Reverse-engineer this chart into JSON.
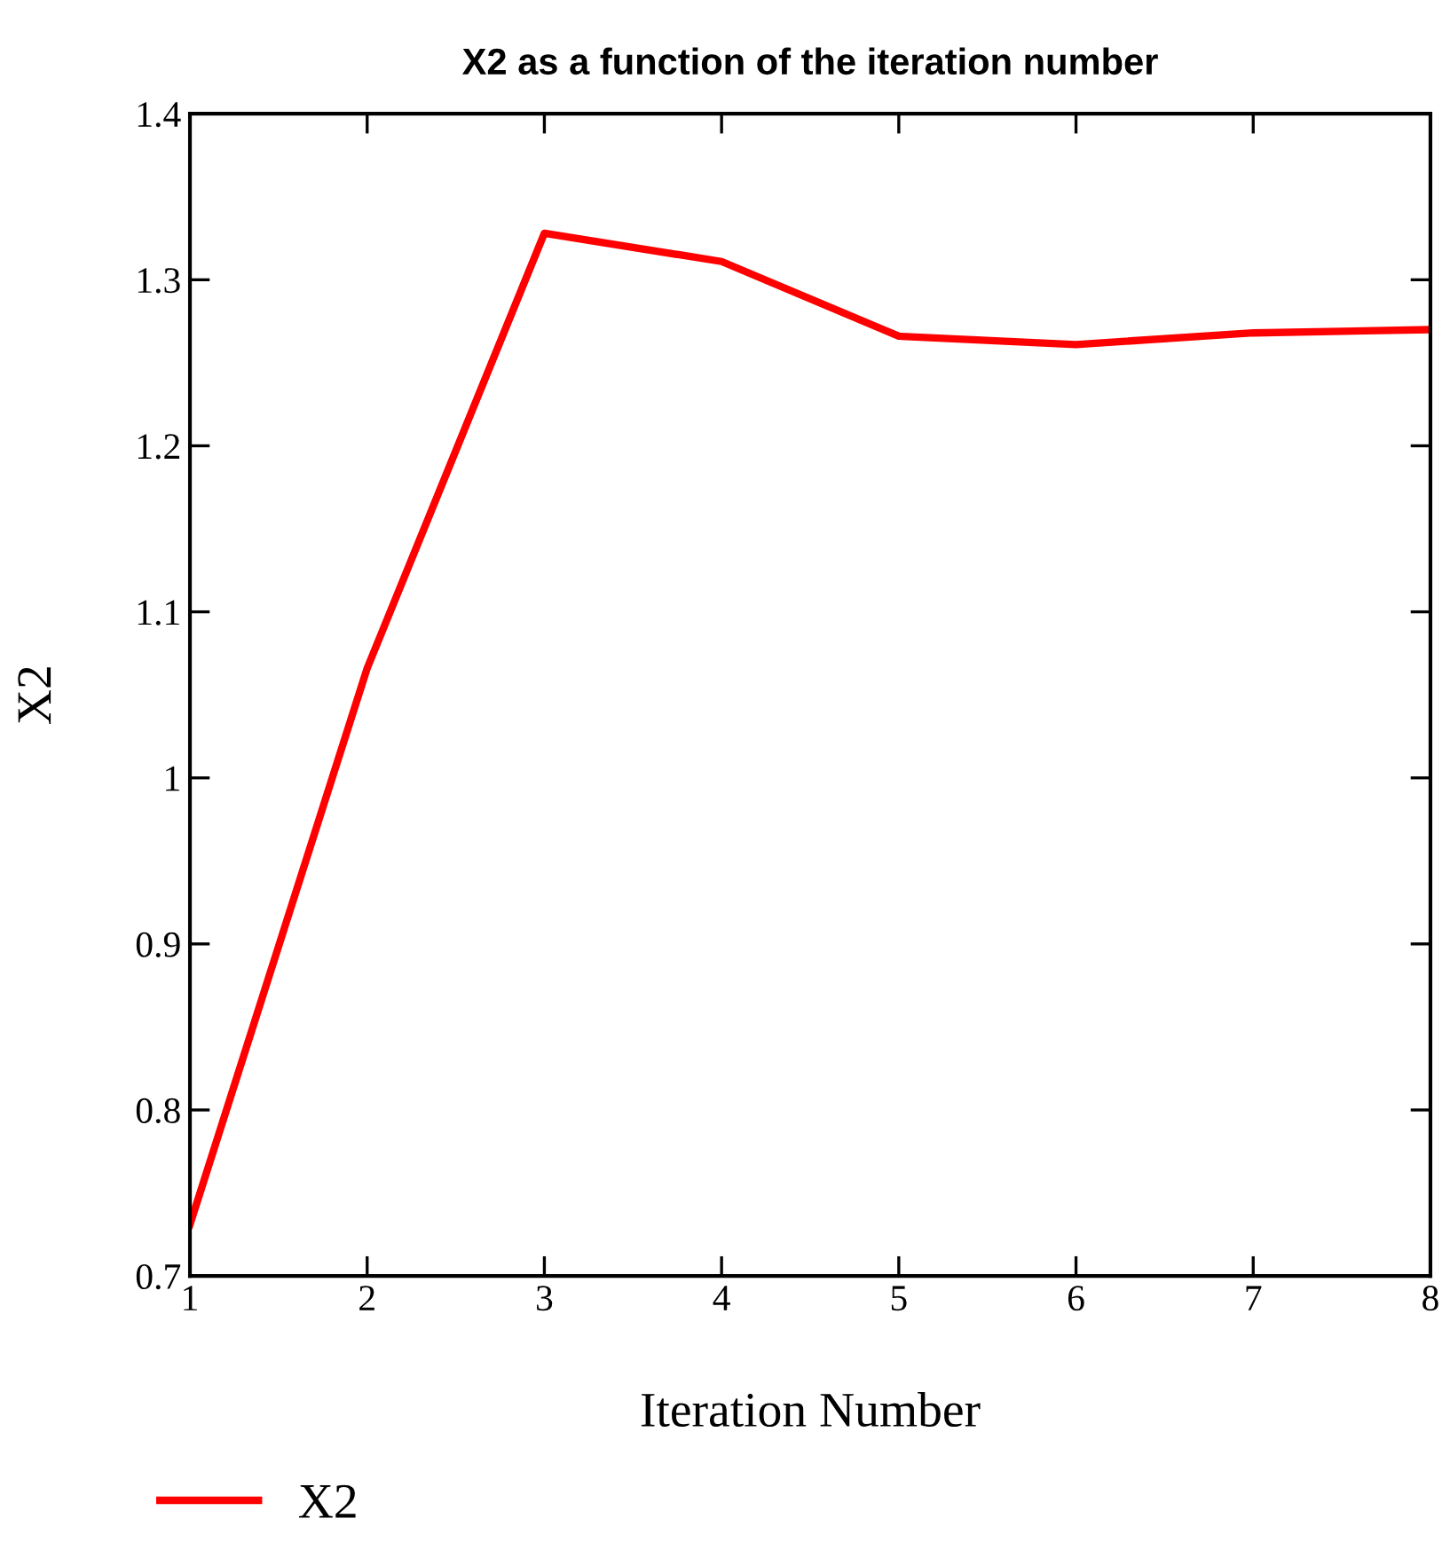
{
  "chart_data": {
    "type": "line",
    "title": "X2 as a function of the iteration number",
    "xlabel": "Iteration Number",
    "ylabel": "X2",
    "x": [
      1,
      2,
      3,
      4,
      5,
      6,
      7,
      8
    ],
    "series": [
      {
        "name": "X2",
        "color": "#ff0000",
        "values": [
          0.731,
          1.066,
          1.328,
          1.311,
          1.266,
          1.261,
          1.268,
          1.27
        ]
      }
    ],
    "xlim": [
      1,
      8
    ],
    "xticks": [
      1,
      2,
      3,
      4,
      5,
      6,
      7,
      8
    ],
    "ylim": [
      0.7,
      1.4
    ],
    "yticks": [
      0.7,
      0.8,
      0.9,
      1,
      1.1,
      1.2,
      1.3,
      1.4
    ],
    "grid": false,
    "legend": "bottom left",
    "marker": "none",
    "line_style": "solid"
  }
}
